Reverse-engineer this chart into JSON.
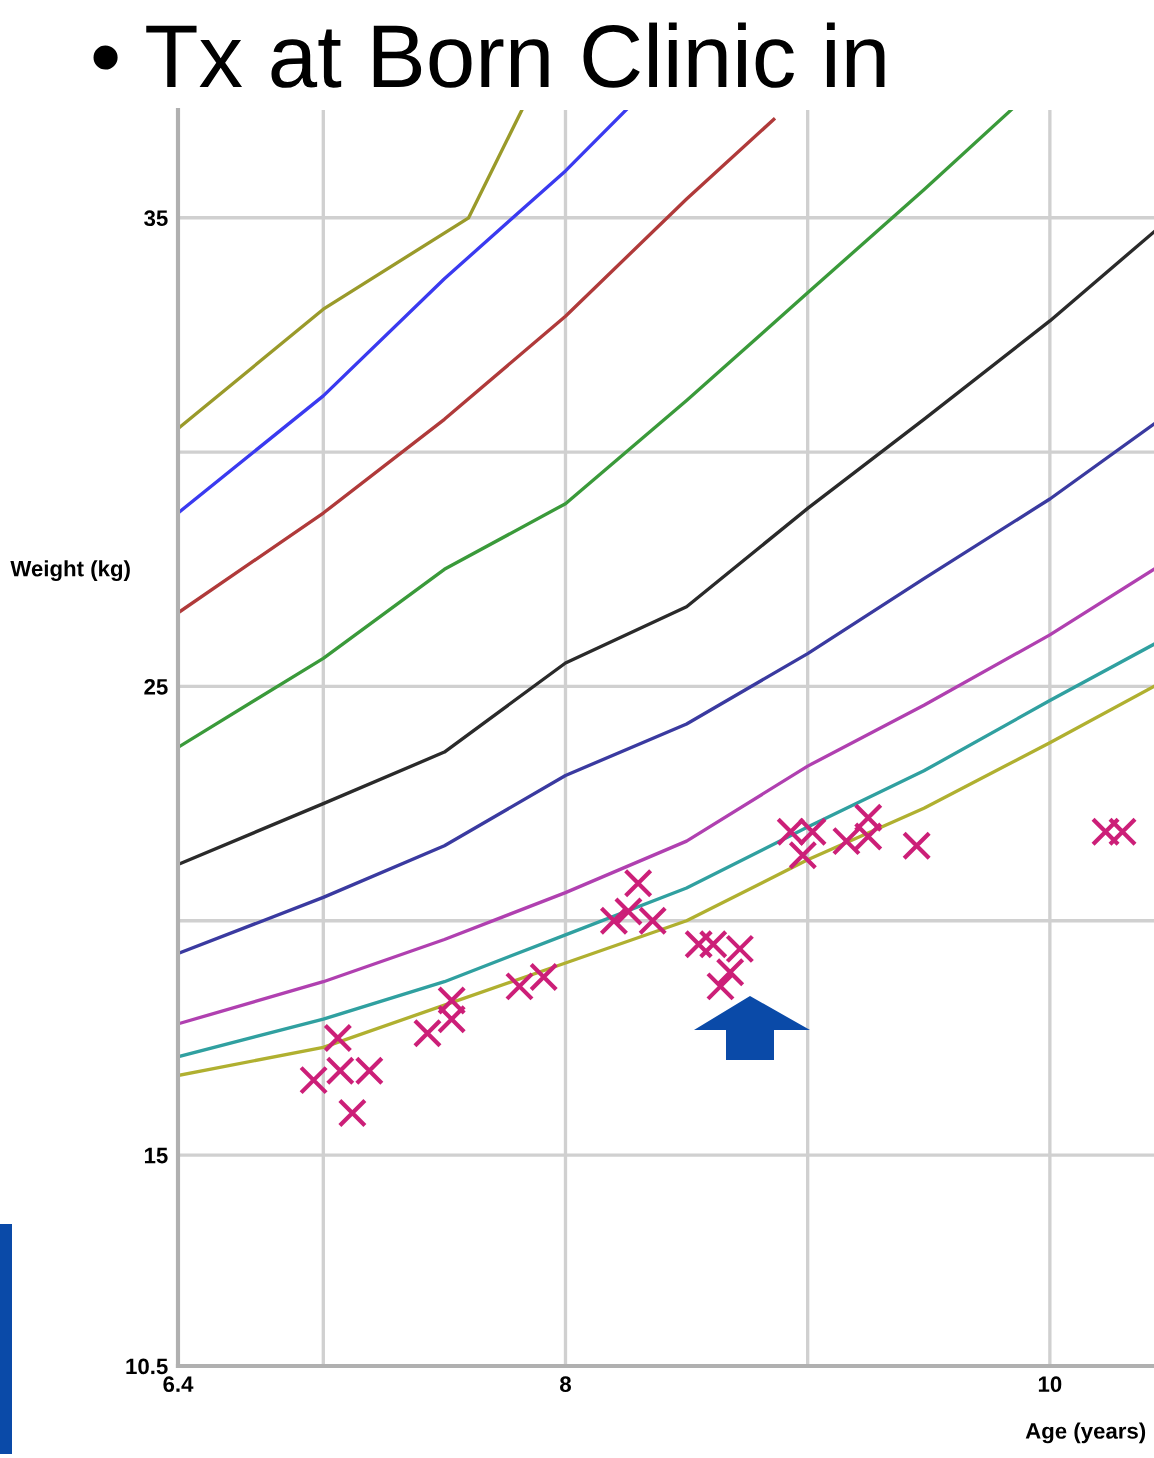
{
  "chart_data": {
    "type": "line",
    "title": "• Tx at Born Clinic in",
    "xlabel": "Age (years)",
    "ylabel": "Weight (kg)",
    "xlim": [
      6.4,
      10.43
    ],
    "ylim": [
      10.5,
      37.3
    ],
    "xticks": [
      6.4,
      {
        "value": 7,
        "label": null
      },
      8,
      {
        "value": 9,
        "label": null
      },
      10
    ],
    "yticks": [
      10.5,
      15,
      {
        "value": 20,
        "label": null
      },
      25,
      {
        "value": 30,
        "label": null
      },
      35
    ],
    "grid": true,
    "legend": false,
    "line_style": "solid",
    "series": [
      {
        "color": "#9a9a2a",
        "x": [
          6.4,
          7.0,
          7.6,
          7.82
        ],
        "values": [
          30.5,
          33.05,
          35.0,
          37.3
        ]
      },
      {
        "color": "#3a3af0",
        "x": [
          6.4,
          7.0,
          7.5,
          8.0,
          8.25
        ],
        "values": [
          28.7,
          31.2,
          33.7,
          36.0,
          37.3
        ]
      },
      {
        "type": "line",
        "color": "#b03a3a",
        "x": [
          6.4,
          7.0,
          7.5,
          8.0,
          8.5,
          8.86
        ],
        "values": [
          26.57,
          28.7,
          30.7,
          32.9,
          35.4,
          37.1
        ]
      },
      {
        "color": "#3a9a3a",
        "x": [
          6.4,
          7.0,
          7.5,
          8.0,
          8.5,
          9.0,
          9.48,
          9.84
        ],
        "values": [
          23.7,
          25.6,
          27.5,
          28.9,
          31.1,
          33.4,
          35.6,
          37.3
        ]
      },
      {
        "type": "line",
        "color": "#2a2a2a",
        "x": [
          6.4,
          7.0,
          7.5,
          8.0,
          8.5,
          9.0,
          9.48,
          10.0,
          10.43
        ],
        "values": [
          21.2,
          22.5,
          23.6,
          25.5,
          26.7,
          28.8,
          30.7,
          32.8,
          34.7
        ]
      },
      {
        "type": "line",
        "color": "#3a3aa0",
        "x": [
          6.4,
          7.0,
          7.5,
          8.0,
          8.5,
          9.0,
          9.48,
          10.0,
          10.43
        ],
        "values": [
          19.3,
          20.5,
          21.6,
          23.1,
          24.2,
          25.7,
          27.3,
          29.0,
          30.6
        ]
      },
      {
        "type": "line",
        "color": "#b040b0",
        "x": [
          6.4,
          7.0,
          7.5,
          8.0,
          8.5,
          9.0,
          9.48,
          10.0,
          10.43
        ],
        "values": [
          17.8,
          18.7,
          19.6,
          20.6,
          21.7,
          23.3,
          24.6,
          26.1,
          27.5
        ]
      },
      {
        "type": "line",
        "color": "#30a0a0",
        "x": [
          6.4,
          7.0,
          7.5,
          8.0,
          8.5,
          9.0,
          9.48,
          10.0,
          10.43
        ],
        "values": [
          17.1,
          17.9,
          18.7,
          19.7,
          20.7,
          22.0,
          23.2,
          24.7,
          25.9
        ]
      },
      {
        "type": "line",
        "color": "#b0b030",
        "x": [
          6.4,
          7.0,
          7.5,
          8.0,
          8.5,
          9.0,
          9.48,
          10.0,
          10.43
        ],
        "values": [
          16.7,
          17.3,
          18.2,
          19.1,
          20.0,
          21.3,
          22.4,
          23.8,
          25.0
        ]
      },
      {
        "type": "scatter",
        "color": "#cc1f78",
        "marker": "cross",
        "x": [
          6.96,
          7.06,
          7.07,
          7.19,
          7.12,
          7.43,
          7.53,
          7.53,
          7.81,
          7.91,
          8.2,
          8.26,
          8.3,
          8.36,
          8.55,
          8.61,
          8.72,
          8.68,
          8.64,
          8.93,
          9.02,
          8.98,
          9.16,
          9.25,
          9.25,
          9.45,
          10.23,
          10.3
        ],
        "values": [
          16.6,
          17.5,
          16.8,
          16.8,
          15.9,
          17.6,
          18.3,
          17.9,
          18.6,
          18.8,
          20.0,
          20.2,
          20.8,
          20.0,
          19.5,
          19.5,
          19.4,
          18.9,
          18.6,
          21.9,
          21.9,
          21.4,
          21.7,
          22.2,
          21.8,
          21.6,
          21.9,
          21.9
        ]
      }
    ]
  }
}
